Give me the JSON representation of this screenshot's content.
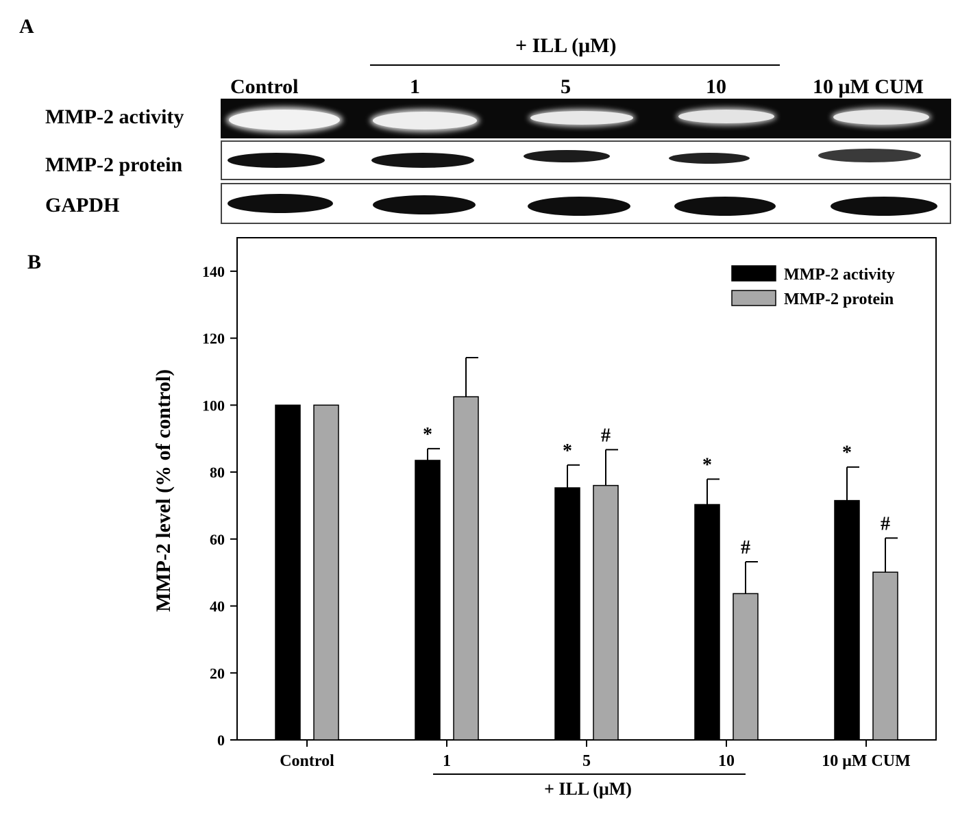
{
  "panel_a": {
    "label": "A",
    "treatment_header": "+ ILL (μM)",
    "lanes": [
      "Control",
      "1",
      "5",
      "10",
      "10 μM CUM"
    ],
    "rows": [
      {
        "label": "MMP-2 activity",
        "kind": "zymogram"
      },
      {
        "label": "MMP-2 protein",
        "kind": "western"
      },
      {
        "label": "GAPDH",
        "kind": "western"
      }
    ]
  },
  "panel_b": {
    "label": "B",
    "group_label": "+ ILL (μM)"
  },
  "chart_data": {
    "type": "bar",
    "title": "",
    "xlabel": "",
    "ylabel": "MMP-2 level (% of control)",
    "ylim": [
      0,
      150
    ],
    "yticks": [
      0,
      20,
      40,
      60,
      80,
      100,
      120,
      140
    ],
    "categories": [
      "Control",
      "1",
      "5",
      "10",
      "10 μM CUM"
    ],
    "grid": false,
    "legend_position": "top-right",
    "series": [
      {
        "name": "MMP-2 activity",
        "color": "#000000",
        "values": [
          100,
          83.5,
          75.3,
          70.3,
          71.5
        ],
        "errors": [
          0,
          3.5,
          6.8,
          7.6,
          10
        ],
        "annotations": [
          "",
          "*",
          "*",
          "*",
          "*"
        ]
      },
      {
        "name": "MMP-2 protein",
        "color": "#a8a8a8",
        "values": [
          100,
          102.5,
          76,
          43.7,
          50.1
        ],
        "errors": [
          0,
          11.7,
          10.7,
          9.5,
          10.2
        ],
        "annotations": [
          "",
          "",
          "#",
          "#",
          "#"
        ]
      }
    ]
  }
}
